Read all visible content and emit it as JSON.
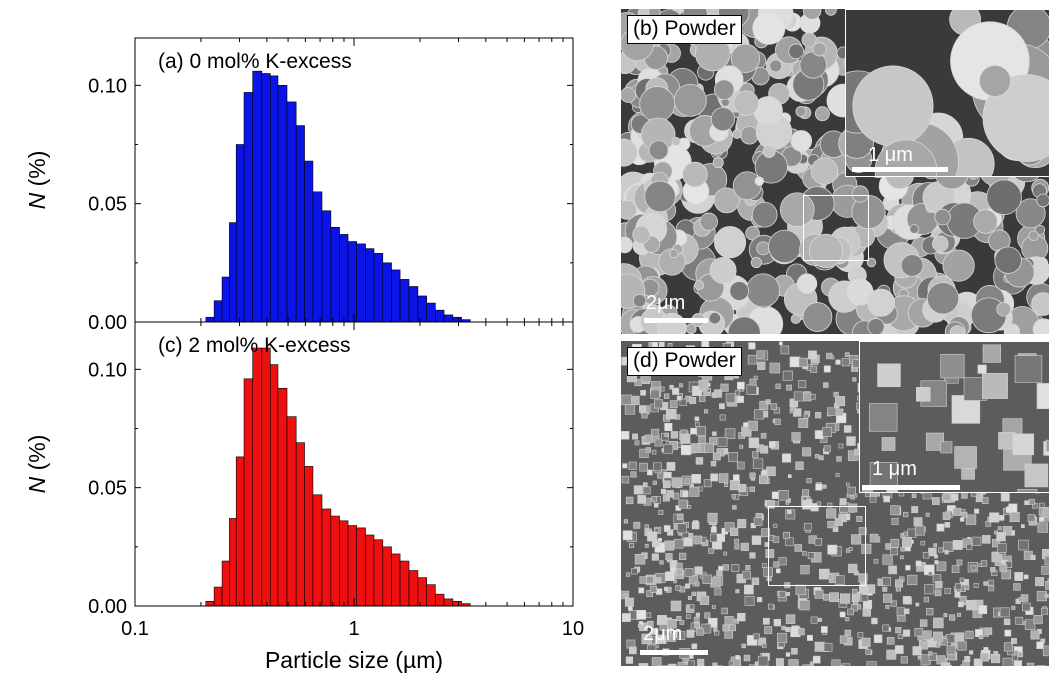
{
  "chart_data": [
    {
      "type": "bar",
      "panel_label": "(a) 0 mol% K-excess",
      "ylabel_italic": "N",
      "ylabel_rest": " (%)",
      "xlabel": "",
      "xscale": "log",
      "xlim": [
        0.1,
        10
      ],
      "ylim": [
        0,
        0.12
      ],
      "yticks": [
        "0.00",
        "0.05",
        "0.10"
      ],
      "xtick_labels_shown": false,
      "color": "#0a14e6",
      "x": [
        0.22,
        0.24,
        0.26,
        0.28,
        0.3,
        0.33,
        0.36,
        0.4,
        0.43,
        0.47,
        0.52,
        0.57,
        0.62,
        0.68,
        0.75,
        0.82,
        0.9,
        0.98,
        1.08,
        1.18,
        1.29,
        1.42,
        1.55,
        1.7,
        1.87,
        2.05,
        2.25,
        2.46,
        2.7,
        2.96,
        3.24,
        3.56,
        3.9,
        4.28,
        4.69,
        5.14
      ],
      "values": [
        0.002,
        0.009,
        0.019,
        0.042,
        0.075,
        0.097,
        0.106,
        0.105,
        0.104,
        0.1,
        0.093,
        0.083,
        0.068,
        0.055,
        0.047,
        0.04,
        0.037,
        0.034,
        0.033,
        0.031,
        0.029,
        0.025,
        0.022,
        0.018,
        0.015,
        0.011,
        0.008,
        0.005,
        0.003,
        0.002,
        0.001,
        0,
        0,
        0,
        0,
        0
      ]
    },
    {
      "type": "bar",
      "panel_label": "(c) 2 mol% K-excess",
      "ylabel_italic": "N",
      "ylabel_rest": " (%)",
      "xlabel": "Particle size (µm)",
      "xscale": "log",
      "xlim": [
        0.1,
        10
      ],
      "ylim": [
        0,
        0.12
      ],
      "yticks": [
        "0.00",
        "0.05",
        "0.10"
      ],
      "xticks": [
        "0.1",
        "1",
        "10"
      ],
      "xtick_labels_shown": true,
      "color": "#ee1010",
      "x": [
        0.22,
        0.24,
        0.26,
        0.28,
        0.3,
        0.33,
        0.36,
        0.4,
        0.43,
        0.47,
        0.52,
        0.57,
        0.62,
        0.68,
        0.75,
        0.82,
        0.9,
        0.98,
        1.08,
        1.18,
        1.29,
        1.42,
        1.55,
        1.7,
        1.87,
        2.05,
        2.25,
        2.46,
        2.7,
        2.96,
        3.24,
        3.56,
        3.9,
        4.28,
        4.69,
        5.14
      ],
      "values": [
        0.002,
        0.008,
        0.019,
        0.037,
        0.063,
        0.096,
        0.109,
        0.109,
        0.102,
        0.092,
        0.08,
        0.069,
        0.059,
        0.047,
        0.041,
        0.038,
        0.036,
        0.034,
        0.033,
        0.03,
        0.028,
        0.025,
        0.022,
        0.019,
        0.015,
        0.012,
        0.009,
        0.005,
        0.003,
        0.002,
        0.001,
        0,
        0,
        0,
        0,
        0
      ]
    }
  ],
  "micrographs": [
    {
      "id": "b",
      "label": "(b) Powder",
      "scale_label": "2μm",
      "inset_scale_label": "1 μm",
      "texture": "agglomerated-particles"
    },
    {
      "id": "d",
      "label": "(d) Powder",
      "scale_label": "2μm",
      "inset_scale_label": "1 μm",
      "texture": "faceted-cubic-grains"
    }
  ]
}
